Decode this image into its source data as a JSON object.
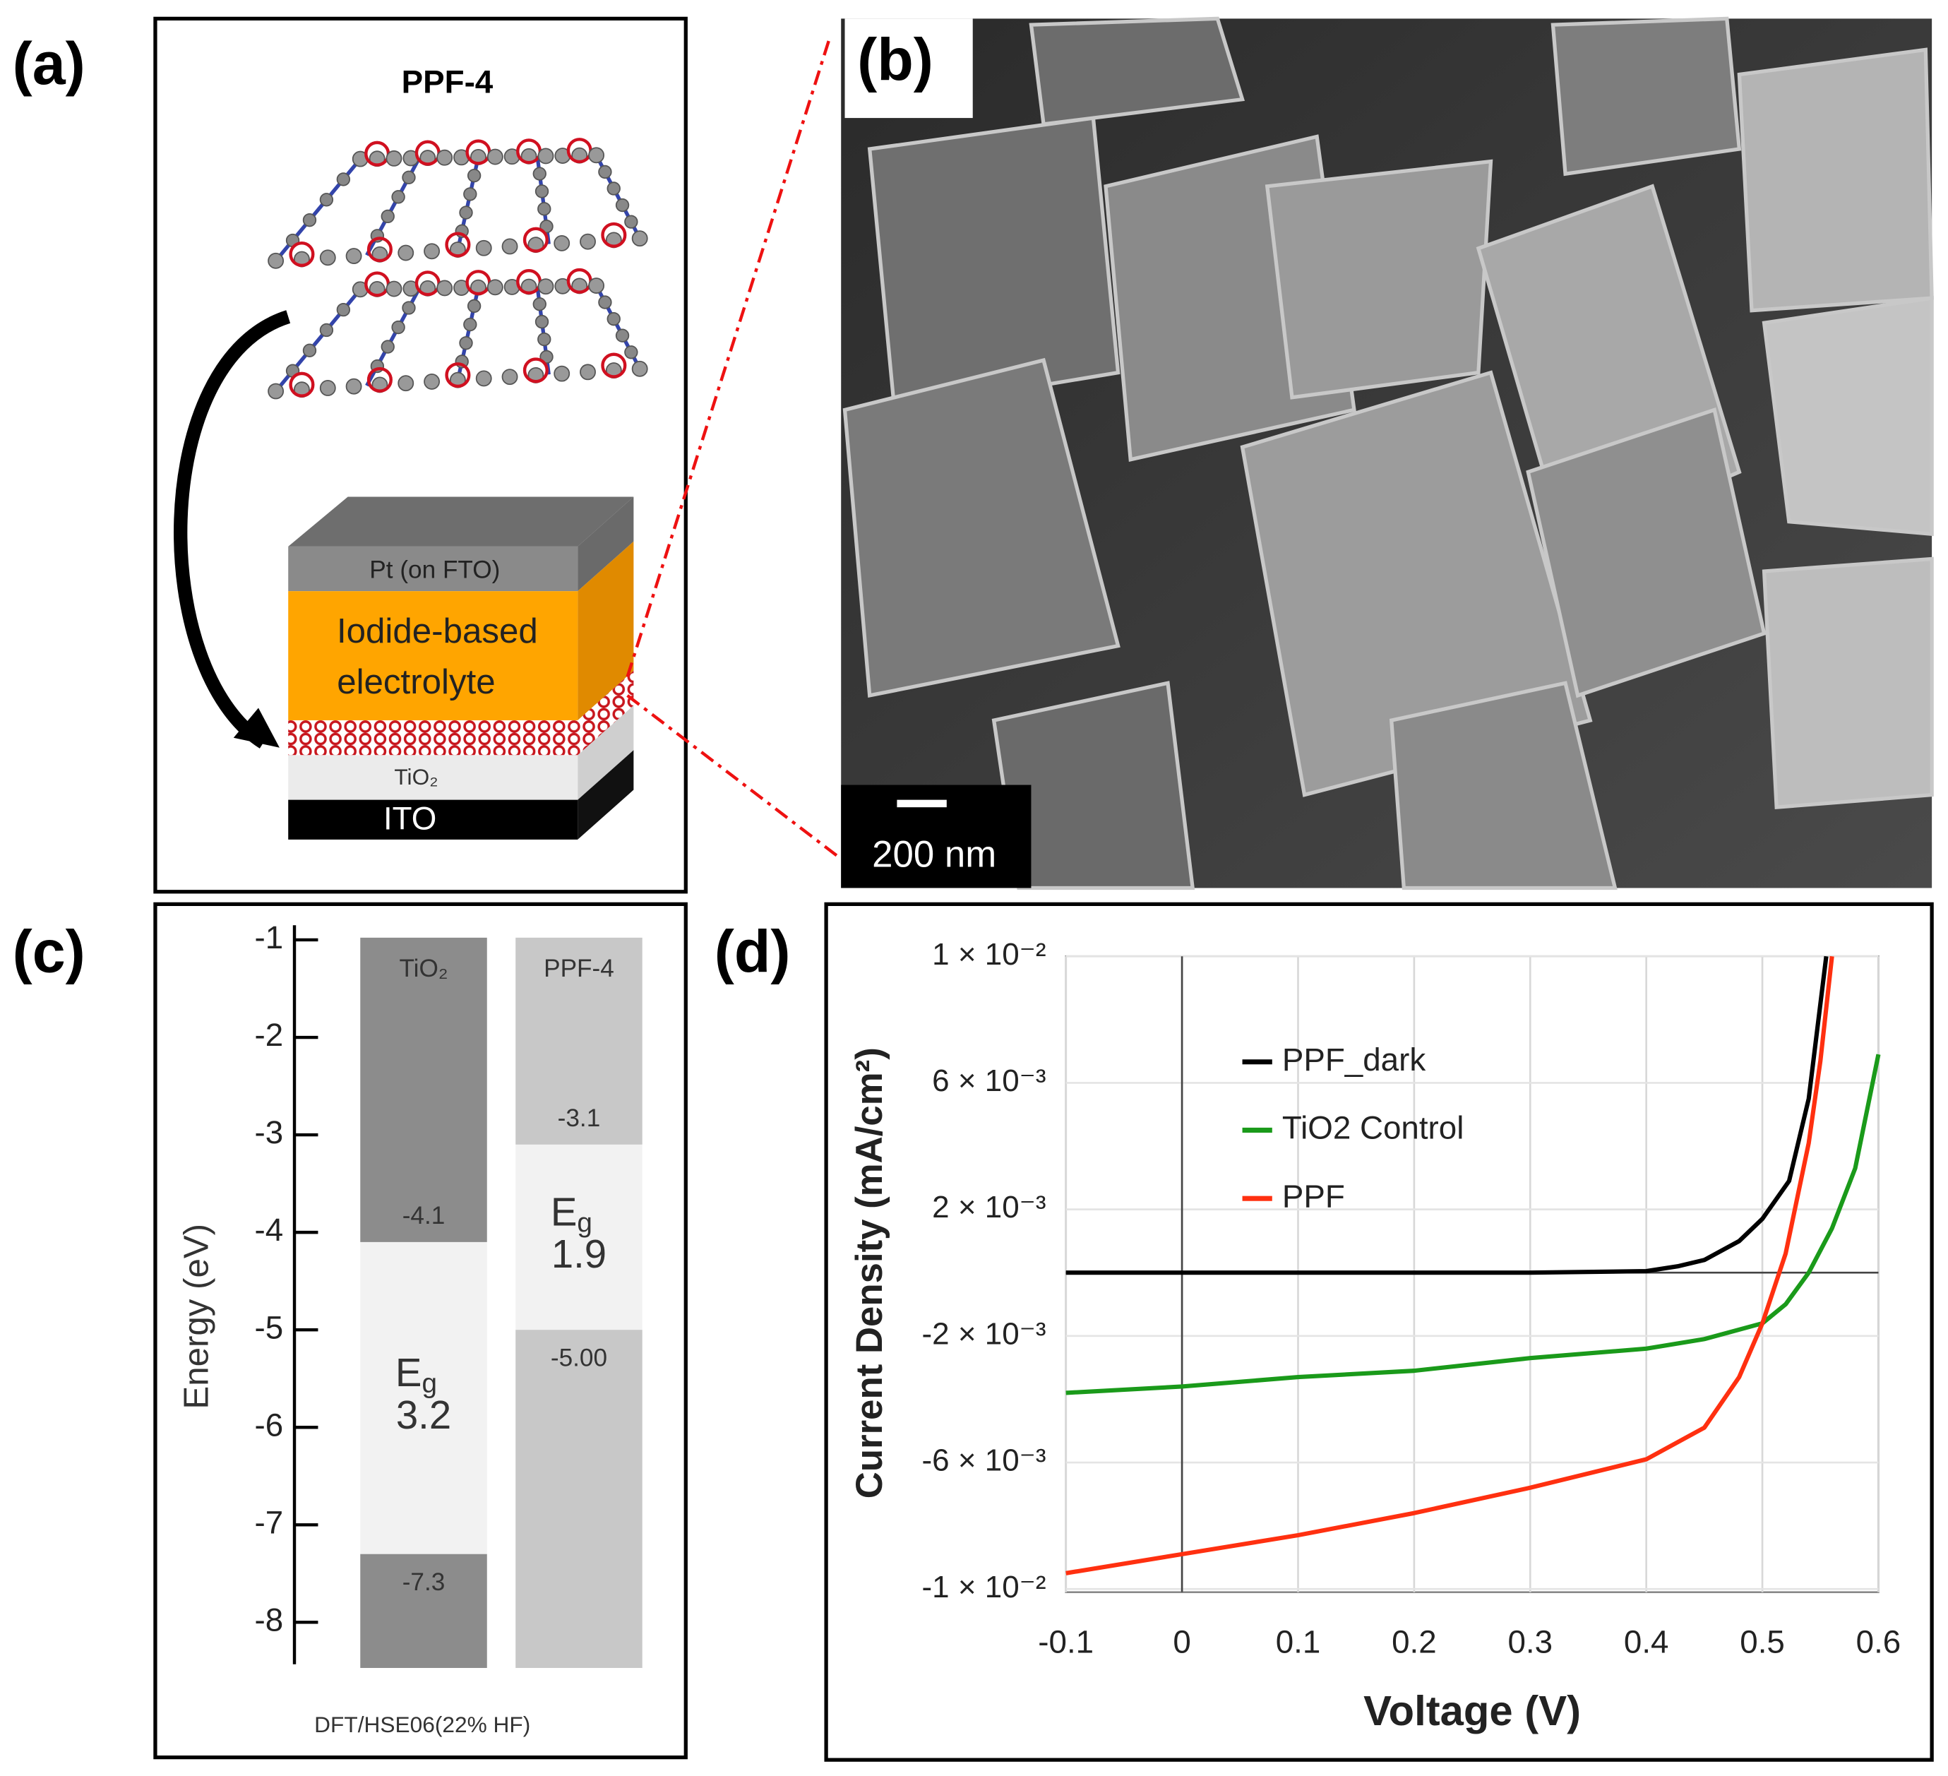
{
  "panels": {
    "a": {
      "label": "(a)",
      "title": "PPF-4",
      "layers": {
        "pt": "Pt (on FTO)",
        "electrolyte": [
          "Iodide-based",
          "electrolyte"
        ],
        "tio2": "TiO₂",
        "ito": "ITO"
      }
    },
    "b": {
      "label": "(b)",
      "scale_bar": "200 nm"
    },
    "c": {
      "label": "(c)"
    },
    "d": {
      "label": "(d)"
    }
  },
  "chart_data": [
    {
      "type": "band_diagram",
      "ylabel": "Energy (eV)",
      "footnote": "DFT/HSE06(22% HF)",
      "ylim": [
        -8.43,
        -0.85
      ],
      "yticks": [
        -1,
        -2,
        -3,
        -4,
        -5,
        -6,
        -7,
        -8
      ],
      "gap_symbol": "E",
      "gap_subscript": "g",
      "gap_color": "#f2f2f2",
      "materials": [
        {
          "name": "TiO₂",
          "band_color": "#8c8c8c",
          "conduction_band": -4.1,
          "valence_band": -7.3,
          "band_gap": 3.2
        },
        {
          "name": "PPF-4",
          "band_color": "#c8c8c8",
          "conduction_band": -3.1,
          "valence_band": -5,
          "valence_band_label": "-5.00",
          "band_gap": 1.9
        }
      ]
    },
    {
      "type": "line",
      "xlabel": "Voltage (V)",
      "ylabel": "Current Density (mA/cm²)",
      "xlim": [
        -0.1,
        0.6
      ],
      "ylim": [
        -0.0101,
        0.01
      ],
      "xticks": [
        -0.1,
        0,
        0.1,
        0.2,
        0.3,
        0.4,
        0.5,
        0.6
      ],
      "yticks": [
        {
          "value": 0.01,
          "label": "1 × 10⁻²"
        },
        {
          "value": 0.006,
          "label": "6 × 10⁻³"
        },
        {
          "value": 0.002,
          "label": "2 × 10⁻³"
        },
        {
          "value": -0.002,
          "label": "-2 × 10⁻³"
        },
        {
          "value": -0.006,
          "label": "-6 × 10⁻³"
        },
        {
          "value": -0.01,
          "label": "-1 × 10⁻²"
        }
      ],
      "grid": true,
      "legend": "upper left",
      "series": [
        {
          "name": "PPF_dark",
          "color": "#000000",
          "x": [
            -0.1,
            0,
            0.1,
            0.2,
            0.3,
            0.4,
            0.427,
            0.45,
            0.48,
            0.5,
            0.523,
            0.54,
            0.555
          ],
          "values": [
            0,
            0,
            0,
            0,
            0,
            5e-05,
            0.0002,
            0.0004,
            0.001,
            0.0017,
            0.0029,
            0.0055,
            0.01
          ]
        },
        {
          "name": "TiO2 Control",
          "color": "#1a9a1a",
          "x": [
            -0.1,
            0,
            0.1,
            0.2,
            0.3,
            0.4,
            0.45,
            0.5,
            0.52,
            0.54,
            0.56,
            0.58,
            0.6
          ],
          "values": [
            -0.0038,
            -0.0036,
            -0.0033,
            -0.0031,
            -0.0027,
            -0.0024,
            -0.0021,
            -0.0016,
            -0.001,
            0,
            0.0014,
            0.0033,
            0.0069
          ]
        },
        {
          "name": "PPF",
          "color": "#ff3010",
          "x": [
            -0.1,
            0,
            0.1,
            0.2,
            0.3,
            0.4,
            0.45,
            0.48,
            0.5,
            0.52,
            0.54,
            0.55,
            0.56
          ],
          "values": [
            -0.0095,
            -0.0089,
            -0.0083,
            -0.0076,
            -0.0068,
            -0.0059,
            -0.0049,
            -0.0033,
            -0.0016,
            0.0006,
            0.0041,
            0.0067,
            0.01
          ]
        }
      ]
    }
  ]
}
